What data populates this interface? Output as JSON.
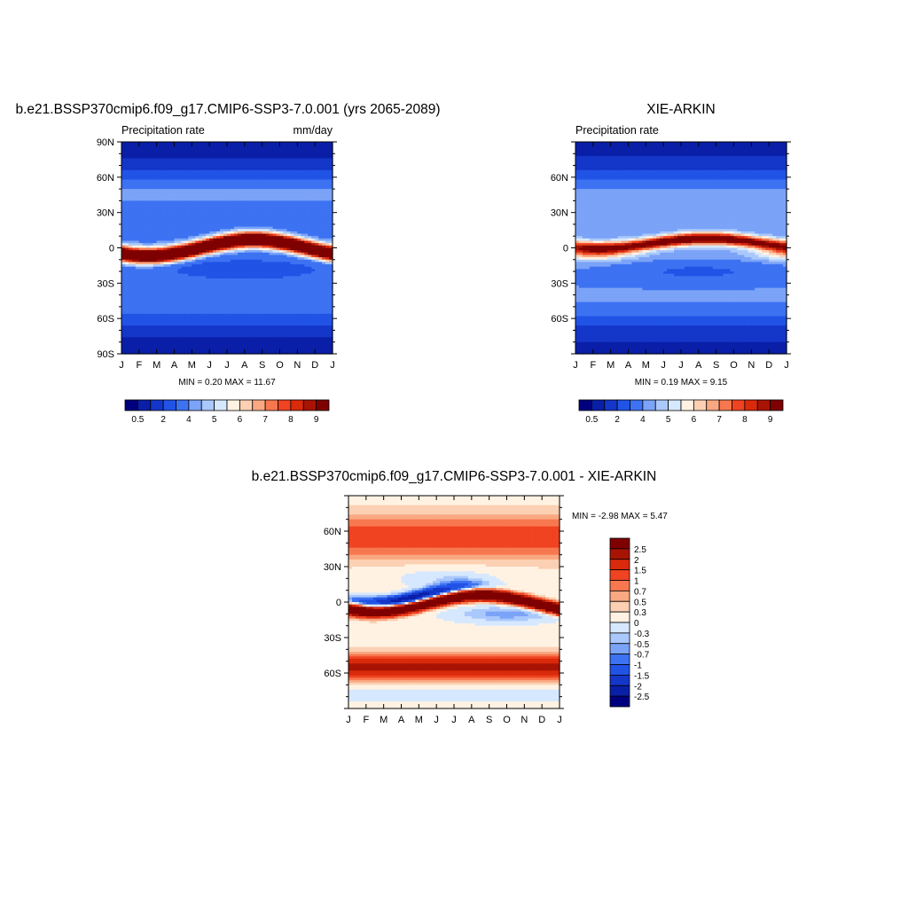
{
  "colors": {
    "seq": [
      "#00007f",
      "#0a1fa8",
      "#1436c9",
      "#2153e6",
      "#3d72f2",
      "#7ba3f7",
      "#aac8fb",
      "#d6e8ff",
      "#fff2e2",
      "#fcd0b3",
      "#f9a882",
      "#f7784f",
      "#f04321",
      "#d92a0c",
      "#a81404",
      "#7f0000"
    ],
    "div": [
      "#00007f",
      "#0a1fa8",
      "#1436c9",
      "#2153e6",
      "#3d72f2",
      "#7ba3f7",
      "#aac8fb",
      "#d6e8ff",
      "#fff2e2",
      "#fcd0b3",
      "#f9a882",
      "#f7784f",
      "#f04321",
      "#d92a0c",
      "#a81404",
      "#7f0000"
    ]
  },
  "chart_data": [
    {
      "type": "heatmap",
      "title": "b.e21.BSSP370cmip6.f09_g17.CMIP6-SSP3-7.0.001 (yrs 2065-2089)",
      "left_label": "Precipitation rate",
      "right_label": "mm/day",
      "x_ticks": [
        "J",
        "F",
        "M",
        "A",
        "M",
        "J",
        "J",
        "A",
        "S",
        "O",
        "N",
        "D",
        "J"
      ],
      "y_ticks": [
        {
          "value": 90,
          "label": "90N"
        },
        {
          "value": 60,
          "label": "60N"
        },
        {
          "value": 30,
          "label": "30N"
        },
        {
          "value": 0,
          "label": "0"
        },
        {
          "value": -30,
          "label": "30S"
        },
        {
          "value": -60,
          "label": "60S"
        },
        {
          "value": -90,
          "label": "90S"
        }
      ],
      "ylim": [
        -90,
        90
      ],
      "stats": "MIN =   0.20 MAX =  11.67",
      "min": 0.2,
      "max": 11.67,
      "colorbar_labels": [
        "0.5",
        "2",
        "4",
        "5",
        "6",
        "7",
        "8",
        "9"
      ],
      "itcz_base": 0,
      "itcz_amp": 7,
      "itcz_peak": 11.6,
      "itcz_width": 4.5,
      "tropics": 3.2,
      "mid": 2.6,
      "polar": 0.4,
      "field": "model"
    },
    {
      "type": "heatmap",
      "title": "XIE-ARKIN",
      "left_label": "Precipitation rate",
      "right_label": "",
      "x_ticks": [
        "J",
        "F",
        "M",
        "A",
        "M",
        "J",
        "J",
        "A",
        "S",
        "O",
        "N",
        "D",
        "J"
      ],
      "y_ticks": [
        {
          "value": 60,
          "label": "60N"
        },
        {
          "value": 30,
          "label": "30N"
        },
        {
          "value": 0,
          "label": "0"
        },
        {
          "value": -30,
          "label": "30S"
        },
        {
          "value": -60,
          "label": "60S"
        }
      ],
      "ylim": [
        -90,
        90
      ],
      "stats": "MIN =   0.19 MAX =   9.15",
      "min": 0.19,
      "max": 9.15,
      "colorbar_labels": [
        "0.5",
        "2",
        "4",
        "5",
        "6",
        "7",
        "8",
        "9"
      ],
      "itcz_base": 4,
      "itcz_amp": 4,
      "itcz_peak": 9.1,
      "itcz_width": 3.5,
      "tropics": 3.6,
      "mid": 2.8,
      "polar": 0.6,
      "field": "obs"
    },
    {
      "type": "heatmap",
      "title": "b.e21.BSSP370cmip6.f09_g17.CMIP6-SSP3-7.0.001 - XIE-ARKIN",
      "left_label": "",
      "right_label": "",
      "x_ticks": [
        "J",
        "F",
        "M",
        "A",
        "M",
        "J",
        "J",
        "A",
        "S",
        "O",
        "N",
        "D",
        "J"
      ],
      "y_ticks": [
        {
          "value": 60,
          "label": "60N"
        },
        {
          "value": 30,
          "label": "30N"
        },
        {
          "value": 0,
          "label": "0"
        },
        {
          "value": -30,
          "label": "30S"
        },
        {
          "value": -60,
          "label": "60S"
        }
      ],
      "ylim": [
        -90,
        90
      ],
      "stats": "MIN =  -2.98 MAX =   5.47",
      "min": -2.98,
      "max": 5.47,
      "colorbar_labels": [
        "2.5",
        "2",
        "1.5",
        "1",
        "0.7",
        "0.5",
        "0.3",
        "0",
        "-0.3",
        "-0.5",
        "-0.7",
        "-1",
        "-1.5",
        "-2",
        "-2.5"
      ],
      "field": "diff"
    }
  ]
}
